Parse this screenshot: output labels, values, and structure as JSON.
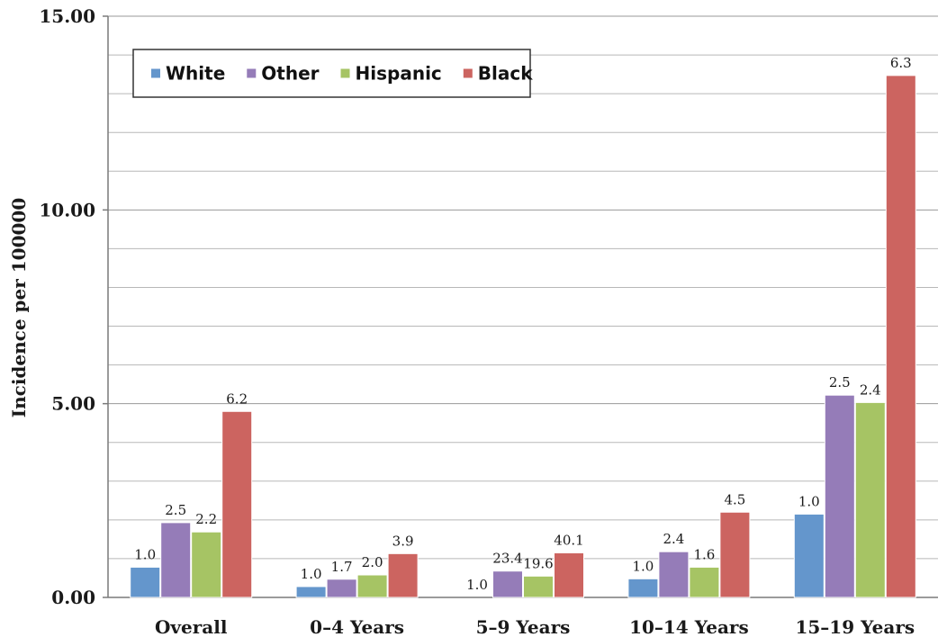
{
  "chart_data": {
    "type": "bar",
    "title": "",
    "xlabel": "",
    "ylabel": "Incidence per 100000",
    "ylim": [
      0,
      15
    ],
    "yticks": [
      "0.00",
      "5.00",
      "10.00",
      "15.00"
    ],
    "grid": true,
    "legend_position": "top-left",
    "categories": [
      "Overall",
      "0–4 Years",
      "5–9 Years",
      "10–14 Years",
      "15–19 Years"
    ],
    "series": [
      {
        "name": "White",
        "color": "#6496cc",
        "values": [
          0.78,
          0.28,
          0.0,
          0.48,
          2.15
        ],
        "labels": [
          "1.0",
          "1.0",
          "1.0",
          "1.0",
          "1.0"
        ]
      },
      {
        "name": "Other",
        "color": "#957cb8",
        "values": [
          1.93,
          0.47,
          0.68,
          1.18,
          5.22
        ],
        "labels": [
          "2.5",
          "1.7",
          "23.4",
          "2.4",
          "2.5"
        ]
      },
      {
        "name": "Hispanic",
        "color": "#a6c464",
        "values": [
          1.69,
          0.58,
          0.55,
          0.78,
          5.03
        ],
        "labels": [
          "2.2",
          "2.0",
          "19.6",
          "1.6",
          "2.4"
        ]
      },
      {
        "name": "Black",
        "color": "#cc6460",
        "values": [
          4.8,
          1.13,
          1.15,
          2.2,
          13.47
        ],
        "labels": [
          "6.2",
          "3.9",
          "40.1",
          "4.5",
          "6.3"
        ]
      }
    ]
  }
}
